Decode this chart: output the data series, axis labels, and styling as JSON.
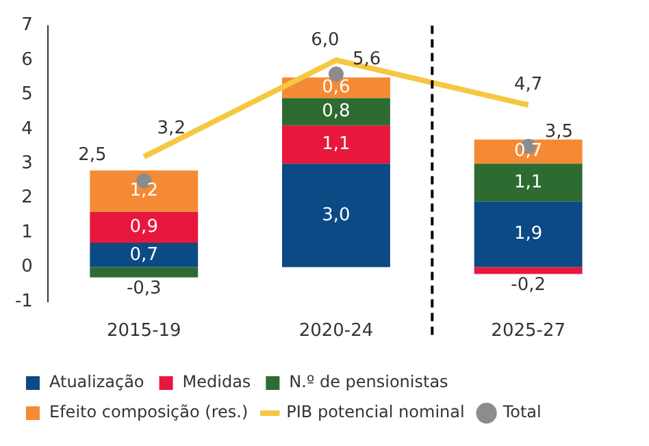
{
  "chart_data": {
    "type": "bar",
    "stacked": true,
    "categories": [
      "2015-19",
      "2020-24",
      "2025-27"
    ],
    "series": [
      {
        "name": "Atualização",
        "color": "#0b4a84",
        "values": [
          0.7,
          3.0,
          1.9
        ],
        "value_labels": [
          "0,7",
          "3,0",
          "1,9"
        ]
      },
      {
        "name": "Medidas",
        "color": "#e8173d",
        "values": [
          0.9,
          1.1,
          -0.2
        ],
        "value_labels": [
          "0,9",
          "1,1",
          "-0,2"
        ]
      },
      {
        "name": "N.º de pensionistas",
        "color": "#2e6b30",
        "values": [
          -0.3,
          0.8,
          1.1
        ],
        "value_labels": [
          "-0,3",
          "0,8",
          "1,1"
        ]
      },
      {
        "name": "Efeito composição (res.)",
        "color": "#f58a35",
        "values": [
          1.2,
          0.6,
          0.7
        ],
        "value_labels": [
          "1,2",
          "0,6",
          "0,7"
        ]
      },
      {
        "name": "PIB potencial nominal",
        "type": "line",
        "color": "#f5c842",
        "values": [
          3.2,
          6.0,
          4.7
        ],
        "value_labels": [
          "3,2",
          "6,0",
          "4,7"
        ]
      },
      {
        "name": "Total",
        "type": "scatter",
        "color": "#8c8c8c",
        "x": [
          "2015-19",
          "2020-24",
          "2025-27"
        ],
        "values": [
          2.5,
          5.6,
          3.5
        ],
        "value_labels": [
          "2,5",
          "5,6",
          "3,5"
        ]
      }
    ],
    "ylim": [
      -1,
      7
    ],
    "yticks": [
      -1,
      0,
      1,
      2,
      3,
      4,
      5,
      6,
      7
    ],
    "grid": false,
    "legend": "bottom"
  }
}
